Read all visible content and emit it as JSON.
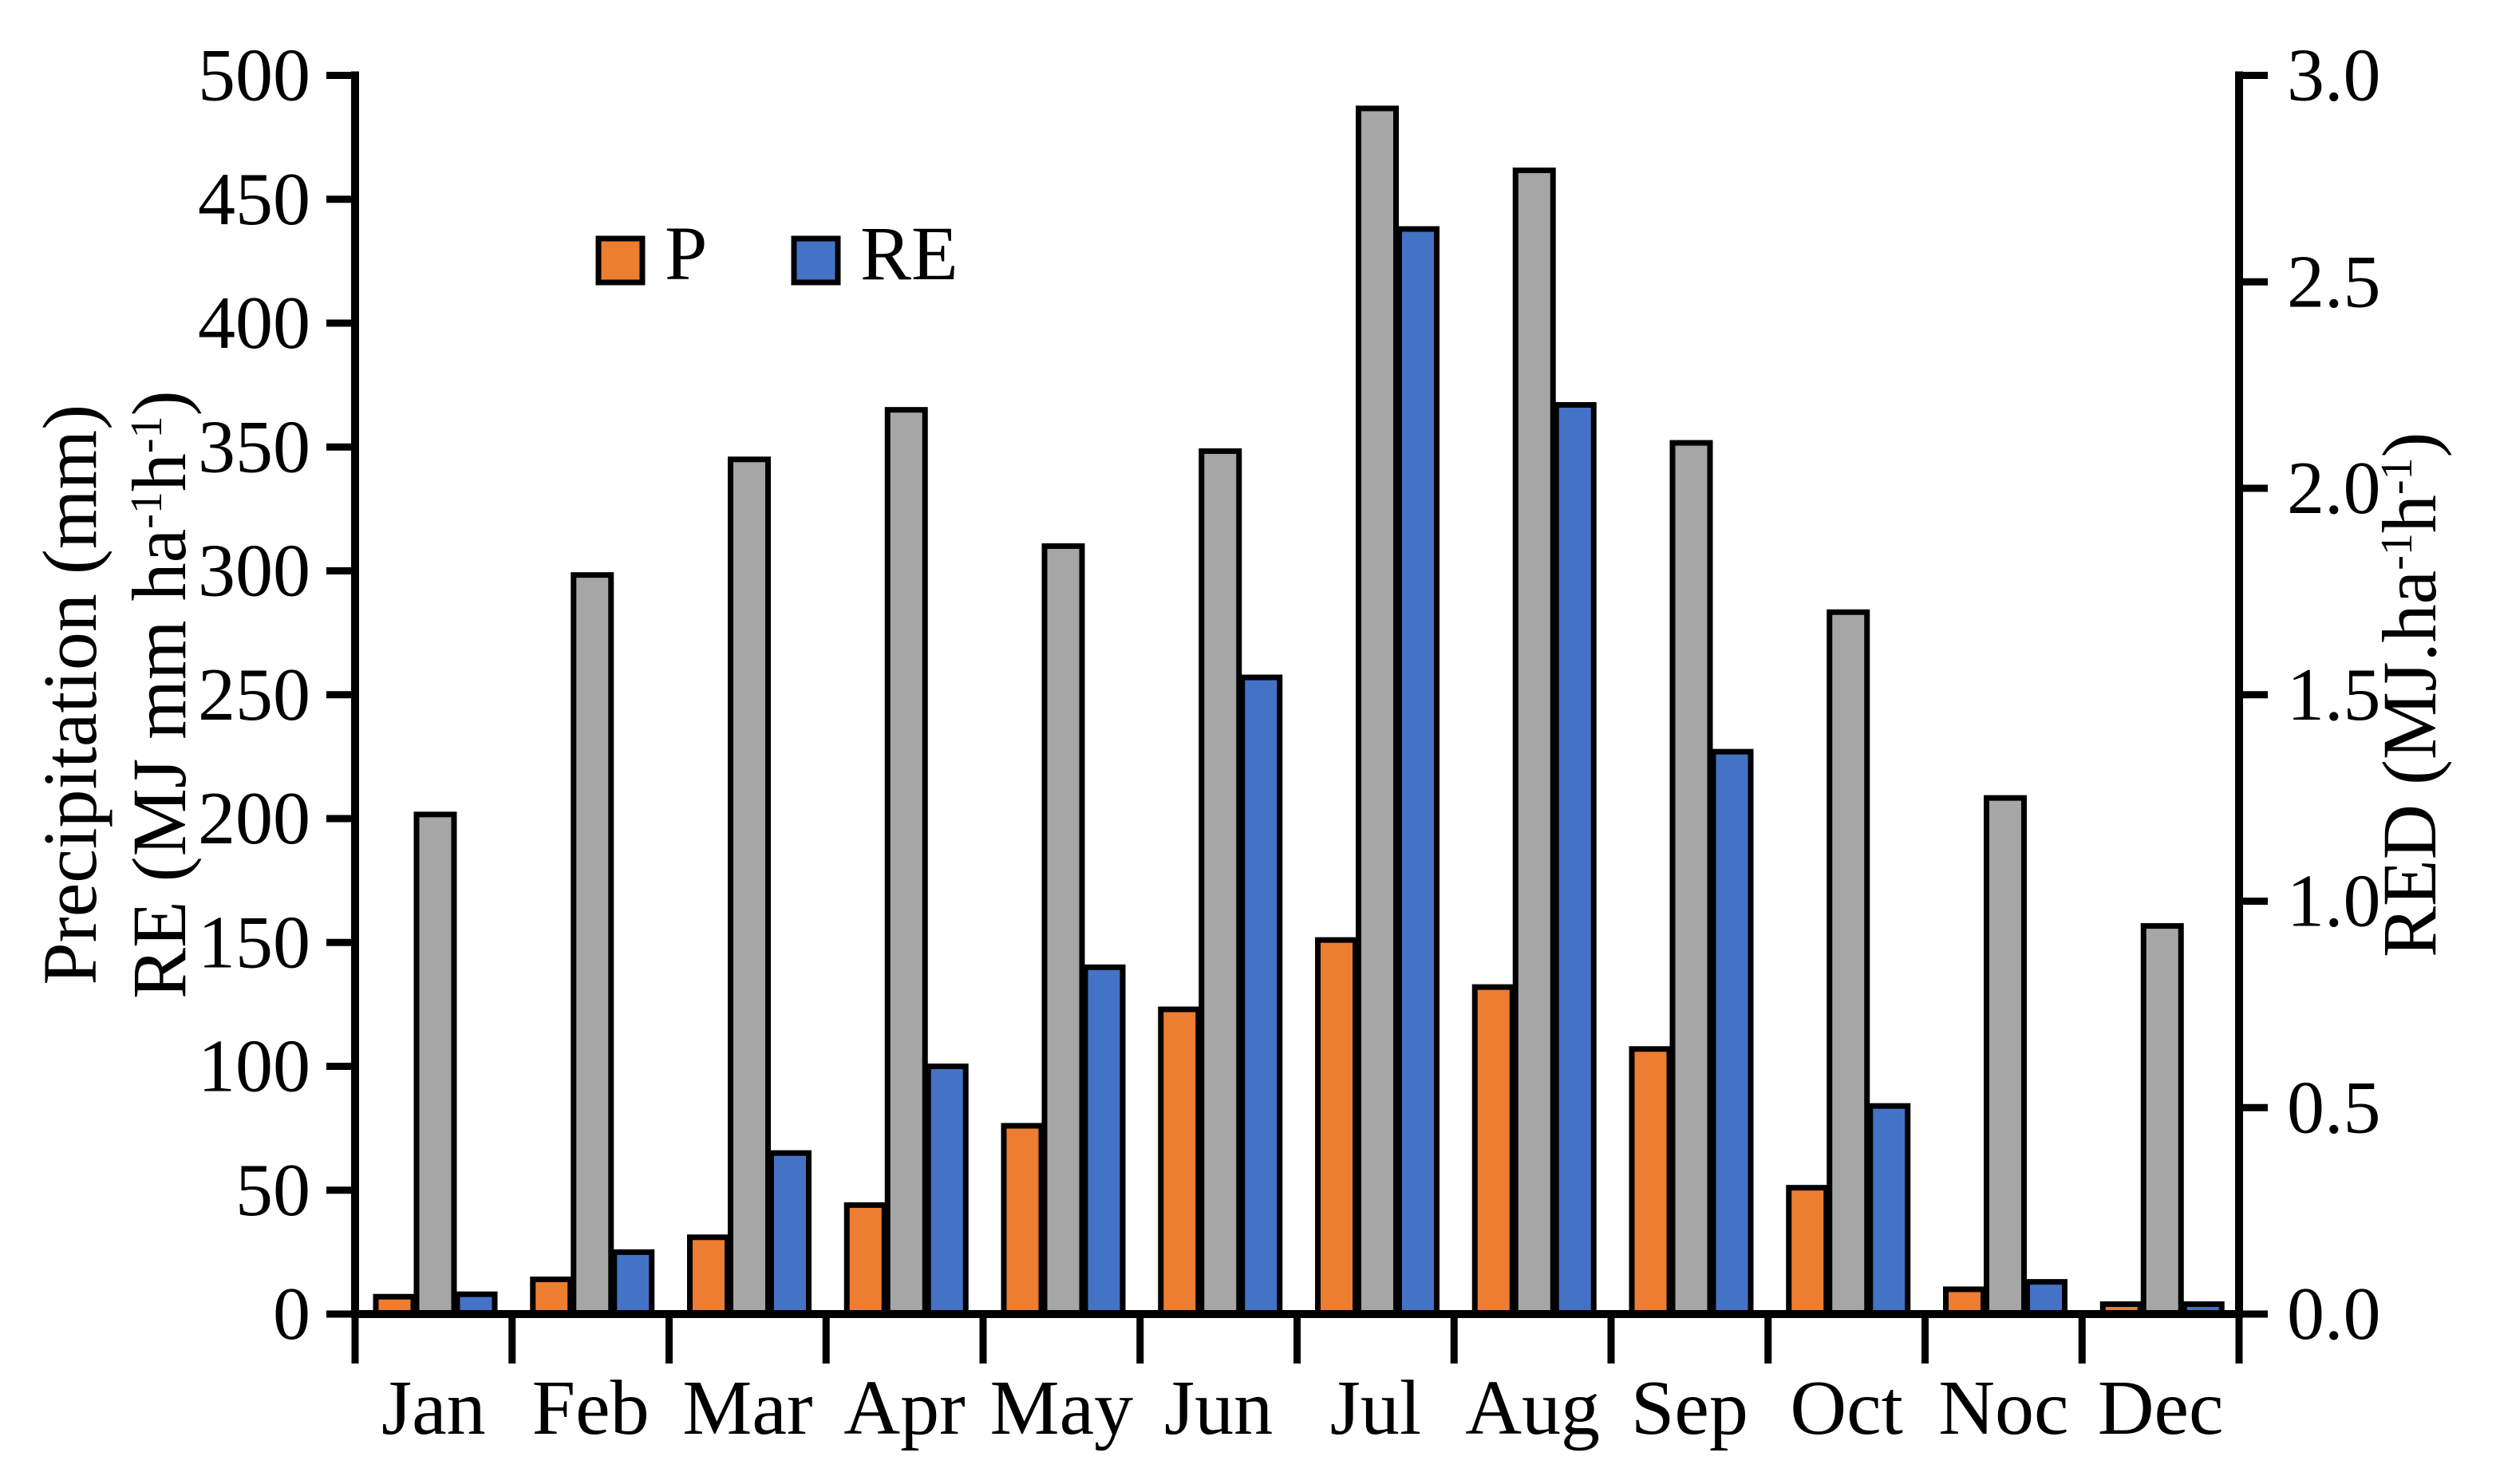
{
  "figure": {
    "background": "#FFFFFF",
    "axis_color": "#000000",
    "bar_border_color": "#000000"
  },
  "chart_data": {
    "type": "bar",
    "categories": [
      "Jan",
      "Feb",
      "Mar",
      "Apr",
      "May",
      "Jun",
      "Jul",
      "Aug",
      "Sep",
      "Oct",
      "Noc",
      "Dec"
    ],
    "series": [
      {
        "name": "P",
        "color": "#ED7D31",
        "axis": "left",
        "in_legend": true,
        "values": [
          7,
          14,
          31,
          44,
          76,
          123,
          151,
          132,
          107,
          51,
          10,
          4
        ]
      },
      {
        "name": "RED",
        "color": "#A6A6A6",
        "axis": "right",
        "in_legend": false,
        "values": [
          1.21,
          1.79,
          2.07,
          2.19,
          1.86,
          2.09,
          2.92,
          2.77,
          2.11,
          1.7,
          1.25,
          0.94
        ]
      },
      {
        "name": "RE",
        "color": "#4472C4",
        "axis": "left",
        "in_legend": true,
        "values": [
          8,
          25,
          65,
          100,
          140,
          257,
          438,
          367,
          227,
          84,
          13,
          4
        ]
      }
    ],
    "left_axis": {
      "min": 0,
      "max": 500,
      "step": 50,
      "decimals": 0,
      "tick_labels": [
        "0",
        "50",
        "100",
        "150",
        "200",
        "250",
        "300",
        "350",
        "400",
        "450",
        "500"
      ],
      "title_lines": [
        [
          {
            "t": "Precipitation (mm)"
          }
        ],
        [
          {
            "t": "RE (MJ mm ha"
          },
          {
            "t": "-1",
            "sup": true
          },
          {
            "t": "h"
          },
          {
            "t": "-1",
            "sup": true
          },
          {
            "t": ")"
          }
        ]
      ]
    },
    "right_axis": {
      "min": 0,
      "max": 3,
      "step": 0.5,
      "decimals": 1,
      "tick_labels": [
        "0.0",
        "0.5",
        "1.0",
        "1.5",
        "2.0",
        "2.5",
        "3.0"
      ],
      "title": [
        {
          "t": "RED (MJ.ha"
        },
        {
          "t": "-1",
          "sup": true
        },
        {
          "t": "h"
        },
        {
          "t": "-1",
          "sup": true
        },
        {
          "t": ")"
        }
      ]
    },
    "legend": [
      {
        "label": "P",
        "series": "P"
      },
      {
        "label": "RE",
        "series": "RE"
      }
    ],
    "legend_position": "inside-top-left",
    "grid": false
  }
}
